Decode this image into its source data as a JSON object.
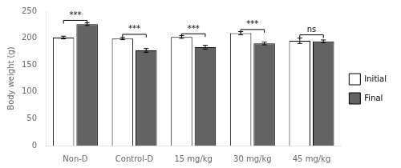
{
  "chart_data": {
    "type": "bar",
    "ylabel": "Body weight (g)",
    "categories": [
      "Non-D",
      "Control-D",
      "15 mg/kg",
      "30 mg/kg",
      "45 mg/kg"
    ],
    "series": [
      {
        "name": "Initial",
        "color": "#ffffff",
        "values": [
          201,
          199,
          202,
          209,
          195
        ],
        "errors": [
          2.5,
          2.0,
          2.5,
          3.0,
          5.0
        ]
      },
      {
        "name": "Final",
        "color": "#636363",
        "values": [
          226,
          177,
          183,
          190,
          194
        ],
        "errors": [
          2.5,
          3.5,
          3.5,
          2.5,
          2.5
        ]
      }
    ],
    "annotations": [
      {
        "category": "Non-D",
        "text": "***",
        "y": 233
      },
      {
        "category": "Control-D",
        "text": "***",
        "y": 207
      },
      {
        "category": "15 mg/kg",
        "text": "***",
        "y": 208
      },
      {
        "category": "30 mg/kg",
        "text": "***",
        "y": 216
      },
      {
        "category": "45 mg/kg",
        "text": "ns",
        "y": 206
      }
    ],
    "ylim": [
      0,
      250
    ],
    "yticks": [
      0,
      50,
      100,
      150,
      200,
      250
    ],
    "grid": false,
    "legend": "right"
  }
}
